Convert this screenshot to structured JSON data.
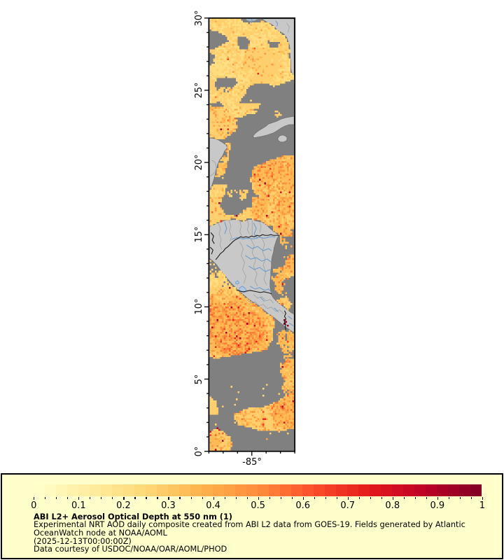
{
  "page": {
    "background": "#FFFFFF"
  },
  "map": {
    "frame_color": "#000000",
    "no_data_color": "#808080",
    "land_color": "#C8C8C8",
    "river_color": "#6699CC",
    "y_axis": {
      "min": 0,
      "max": 30,
      "major_step": 5,
      "minor_step": 1,
      "tick_labels": [
        "0°",
        "5°",
        "10°",
        "15°",
        "20°",
        "25°",
        "30°"
      ]
    },
    "x_axis": {
      "min": -88,
      "max": -82,
      "minor_step": 1,
      "major_values": [
        -85
      ],
      "tick_labels": [
        "-85°"
      ]
    }
  },
  "legend": {
    "background": "#FFFFCC",
    "border_color": "#000000",
    "colorbar": {
      "min": 0,
      "max": 1,
      "major_step": 0.1,
      "minor_step": 0.025,
      "blocks": 40,
      "tick_labels": [
        "0",
        "0.1",
        "0.2",
        "0.3",
        "0.4",
        "0.5",
        "0.6",
        "0.7",
        "0.8",
        "0.9",
        "1"
      ],
      "colormap_stops": [
        "#FFFFCC",
        "#FFEDA0",
        "#FED976",
        "#FEB24C",
        "#FD8D3C",
        "#FC4E2A",
        "#E31A1C",
        "#BD0026",
        "#800026"
      ]
    },
    "title": "ABI L2+ Aerosol Optical Depth at 550 nm (1)",
    "summary_lines": [
      "Experimental NRT AOD daily composite created from ABI L2 data from GOES-19. Fields generated by Atlantic",
      "OceanWatch node at NOAA/AOML"
    ],
    "timestamp": "(2025-12-13T00:00:00Z)",
    "courtesy": "Data courtesy of USDOC/NOAA/OAR/AOML/PHOD"
  }
}
